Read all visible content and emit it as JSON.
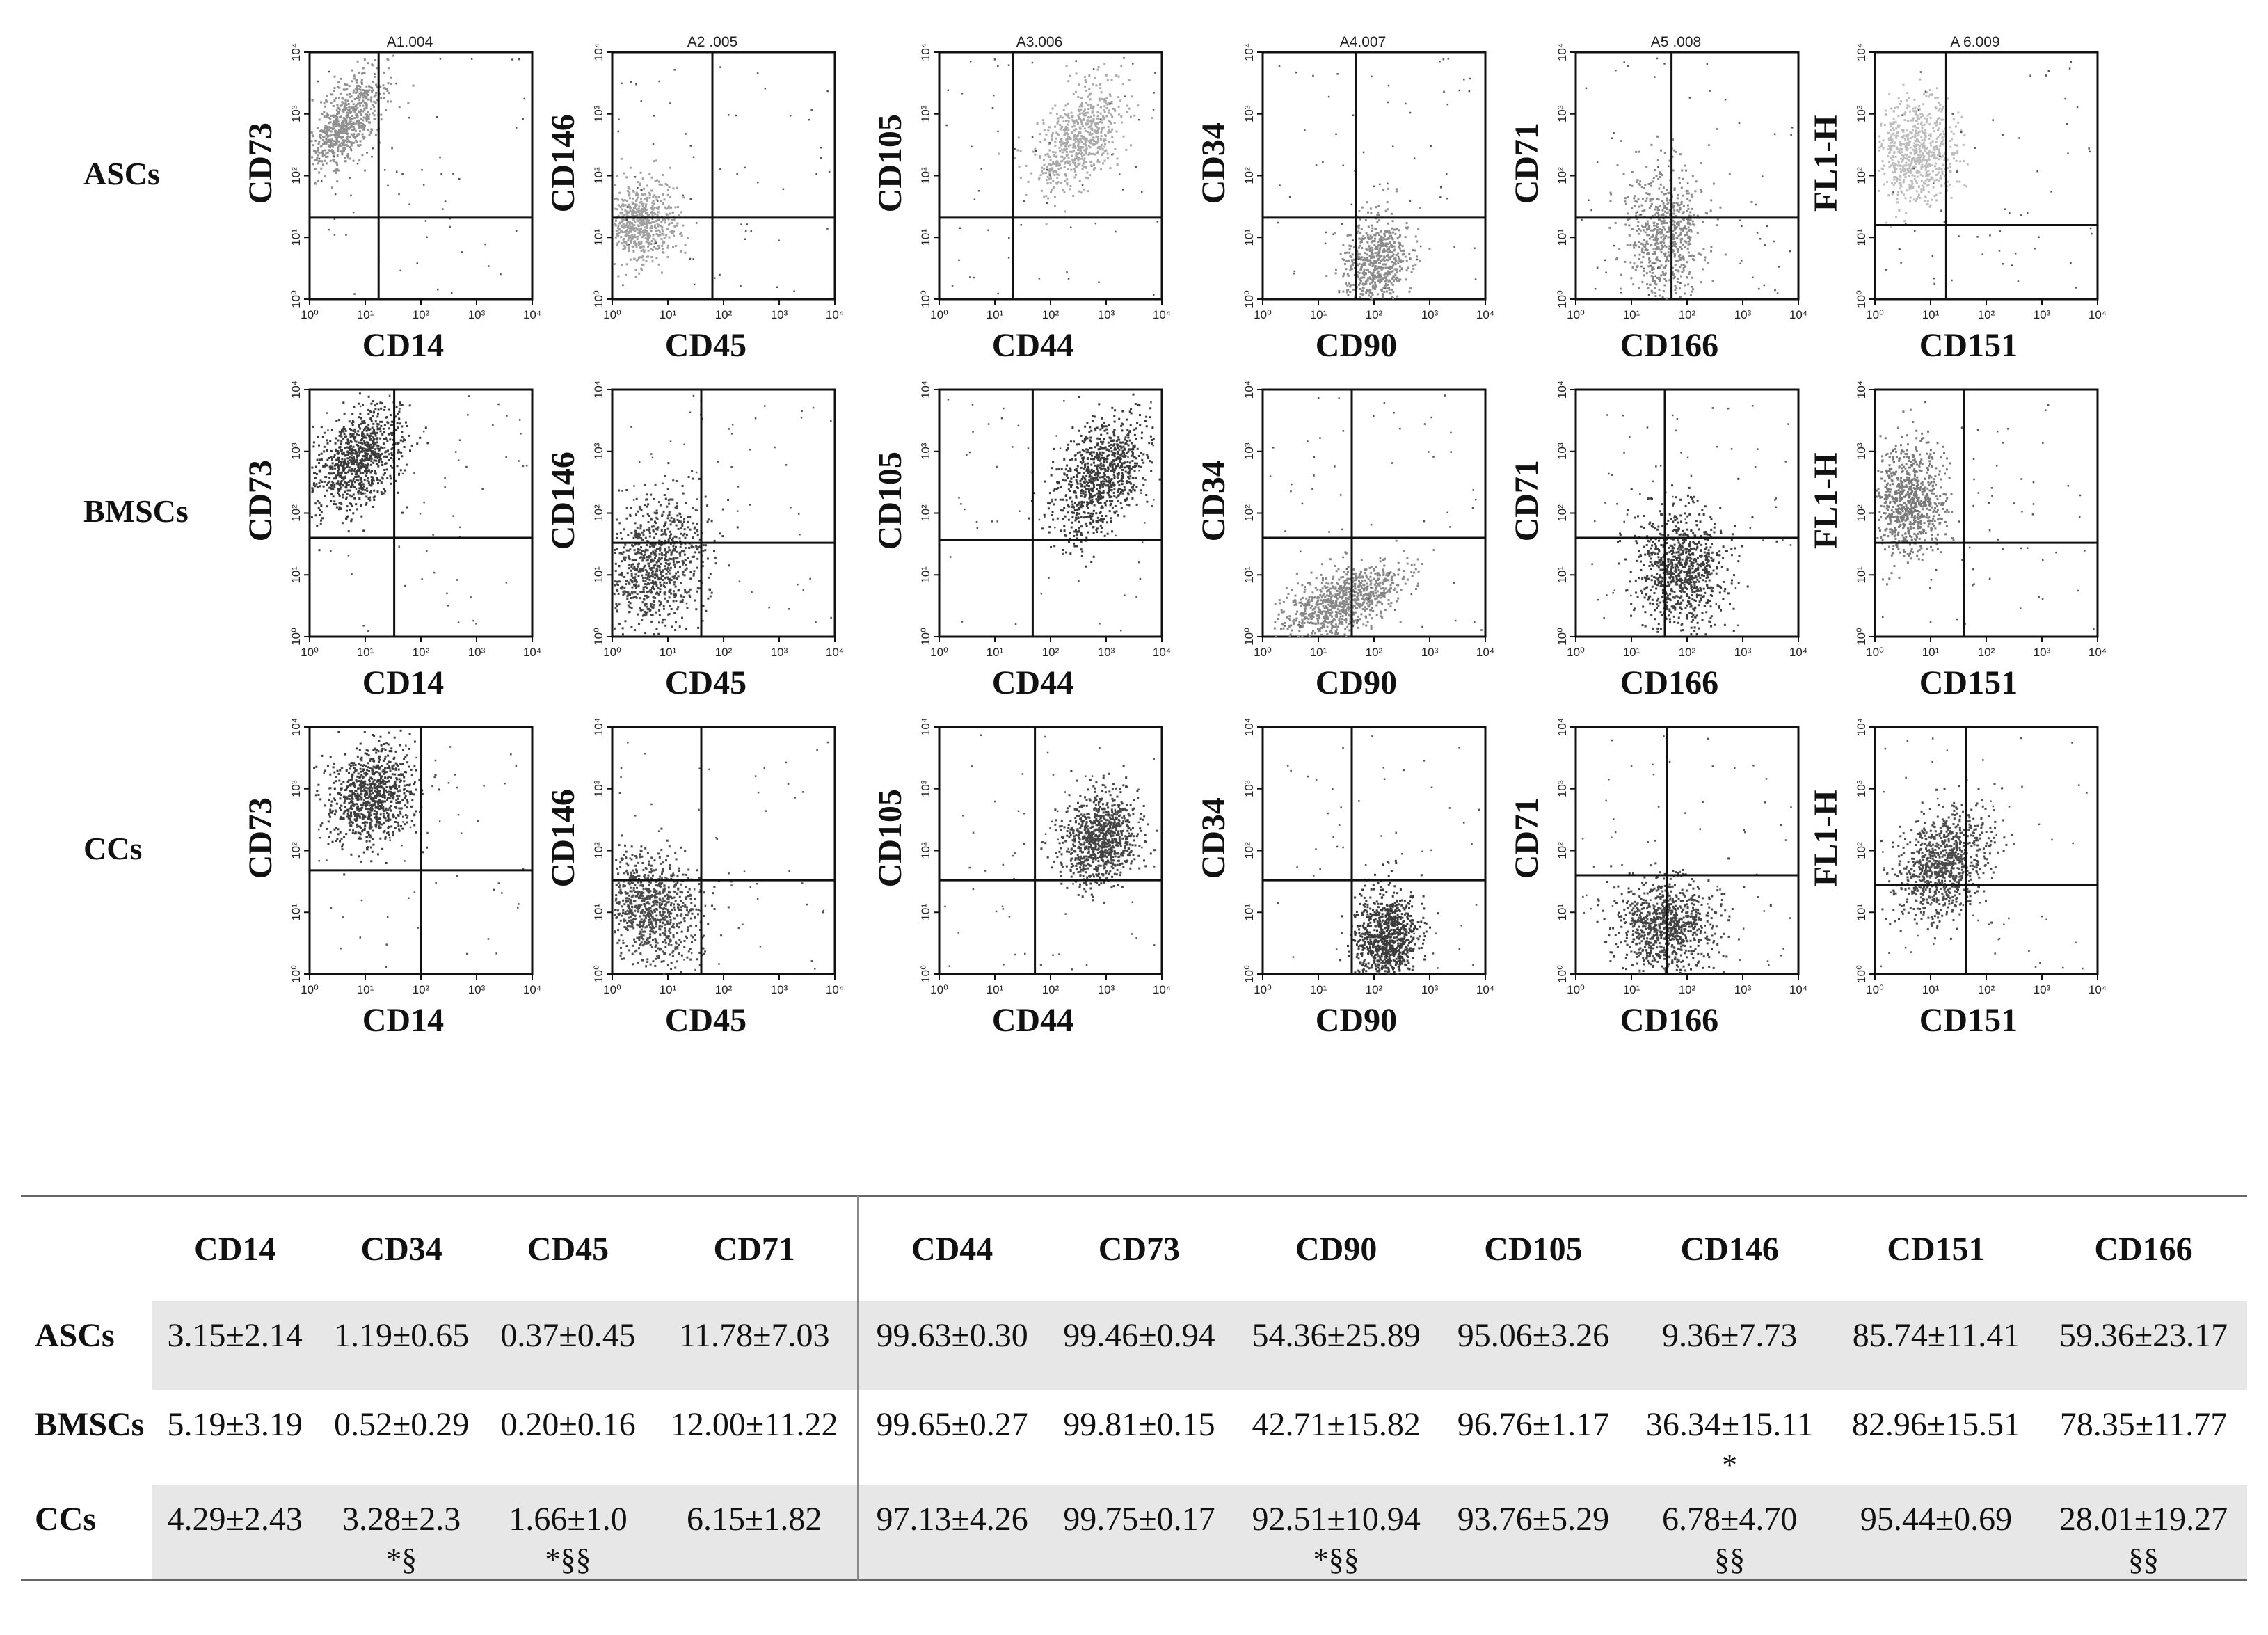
{
  "figure": {
    "rows": [
      "ASCs",
      "BMSCs",
      "CCs"
    ],
    "panel_titles": [
      "A1.004",
      "A2 .005",
      "A3.006",
      "A4.007",
      "A5 .008",
      "A 6.009"
    ],
    "x_labels": [
      "CD14",
      "CD45",
      "CD44",
      "CD90",
      "CD166",
      "CD151"
    ],
    "y_labels": [
      "CD73",
      "CD146",
      "CD105",
      "CD34",
      "CD71",
      "FL1-H"
    ],
    "tick_labels": [
      "10⁰",
      "10¹",
      "10²",
      "10³",
      "10⁴"
    ]
  },
  "table": {
    "columns": [
      "CD14",
      "CD34",
      "CD45",
      "CD71",
      "CD44",
      "CD73",
      "CD90",
      "CD105",
      "CD146",
      "CD151",
      "CD166"
    ],
    "rows": [
      {
        "label": "ASCs",
        "values": [
          "3.15±2.14",
          "1.19±0.65",
          "0.37±0.45",
          "11.78±7.03",
          "99.63±0.30",
          "99.46±0.94",
          "54.36±25.89",
          "95.06±3.26",
          "9.36±7.73",
          "85.74±11.41",
          "59.36±23.17"
        ],
        "marks": [
          "",
          "",
          "",
          "",
          "",
          "",
          "",
          "",
          "",
          "",
          ""
        ]
      },
      {
        "label": "BMSCs",
        "values": [
          "5.19±3.19",
          "0.52±0.29",
          "0.20±0.16",
          "12.00±11.22",
          "99.65±0.27",
          "99.81±0.15",
          "42.71±15.82",
          "96.76±1.17",
          "36.34±15.11",
          "82.96±15.51",
          "78.35±11.77"
        ],
        "marks": [
          "",
          "",
          "",
          "",
          "",
          "",
          "",
          "",
          "*",
          "",
          ""
        ]
      },
      {
        "label": "CCs",
        "values": [
          "4.29±2.43",
          "3.28±2.3",
          "1.66±1.0",
          "6.15±1.82",
          "97.13±4.26",
          "99.75±0.17",
          "92.51±10.94",
          "93.76±5.29",
          "6.78±4.70",
          "95.44±0.69",
          "28.01±19.27"
        ],
        "marks": [
          "",
          "*§",
          "*§§",
          "",
          "",
          "",
          "*§§",
          "",
          "§§",
          "",
          "§§"
        ]
      }
    ]
  }
}
